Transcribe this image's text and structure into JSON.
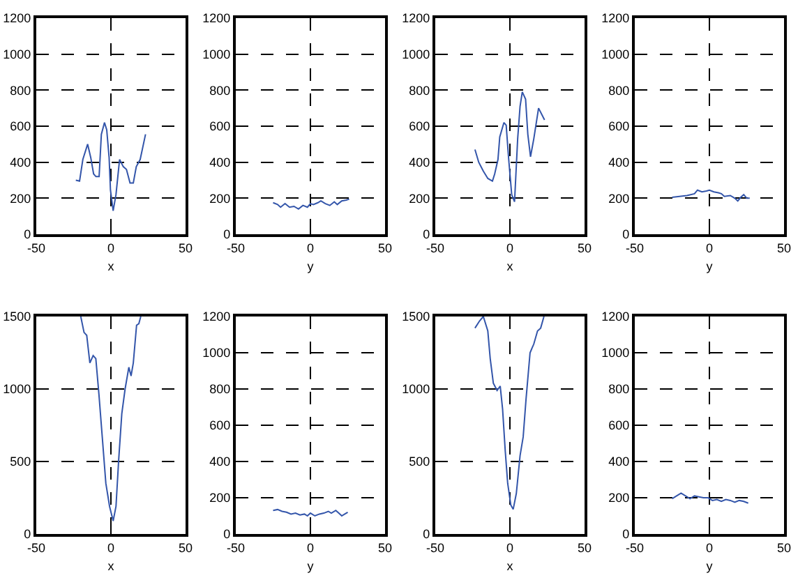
{
  "chart_data": [
    {
      "type": "line",
      "xlabel": "x",
      "xlim": [
        -50,
        50
      ],
      "xticks": [
        -50,
        0,
        50
      ],
      "ylim": [
        0,
        1200
      ],
      "yticks": [
        0,
        200,
        400,
        600,
        800,
        1000,
        1200
      ],
      "grid": true,
      "line_style": "solid",
      "series": [
        {
          "color": "#3355aa",
          "x": [
            -23.5,
            -21,
            -18.8,
            -15.6,
            -13.5,
            -11.6,
            -10,
            -7.9,
            -6.4,
            -4.3,
            -2.8,
            -1.2,
            -0.3,
            1.5,
            3.4,
            5.8,
            8.3,
            10.4,
            12.8,
            15,
            17,
            19.6,
            23.2
          ],
          "values": [
            300,
            295,
            415,
            500,
            425,
            335,
            320,
            320,
            555,
            620,
            580,
            425,
            245,
            130,
            220,
            415,
            375,
            360,
            285,
            285,
            375,
            415,
            555
          ]
        }
      ]
    },
    {
      "type": "line",
      "xlabel": "y",
      "xlim": [
        -50,
        50
      ],
      "xticks": [
        -50,
        0,
        50
      ],
      "ylim": [
        0,
        1200
      ],
      "yticks": [
        0,
        200,
        400,
        600,
        800,
        1000,
        1200
      ],
      "grid": true,
      "line_style": "solid",
      "series": [
        {
          "color": "#3355aa",
          "x": [
            -25,
            -22,
            -20,
            -17,
            -14,
            -11,
            -8,
            -5,
            -2,
            0,
            2,
            5,
            7,
            10,
            13,
            16,
            18,
            21,
            24,
            26
          ],
          "values": [
            175,
            165,
            150,
            170,
            150,
            155,
            140,
            160,
            150,
            170,
            165,
            175,
            185,
            170,
            160,
            180,
            165,
            185,
            190,
            195
          ]
        }
      ]
    },
    {
      "type": "line",
      "xlabel": "x",
      "xlim": [
        -50,
        50
      ],
      "xticks": [
        -50,
        0,
        50
      ],
      "ylim": [
        0,
        1200
      ],
      "yticks": [
        0,
        200,
        400,
        600,
        800,
        1000,
        1200
      ],
      "grid": true,
      "line_style": "solid",
      "series": [
        {
          "color": "#3355aa",
          "x": [
            -23.4,
            -20.9,
            -17.8,
            -14.8,
            -11.7,
            -10.2,
            -8,
            -6.8,
            -4,
            -2.5,
            -0.9,
            1.2,
            3.1,
            5.2,
            6.8,
            8.3,
            10.5,
            12,
            13.8,
            16,
            19.2,
            23.2
          ],
          "values": [
            470,
            400,
            350,
            310,
            295,
            335,
            415,
            540,
            620,
            605,
            425,
            220,
            180,
            530,
            710,
            790,
            750,
            555,
            430,
            530,
            700,
            635
          ]
        }
      ]
    },
    {
      "type": "line",
      "xlabel": "y",
      "xlim": [
        -50,
        50
      ],
      "xticks": [
        -50,
        0,
        50
      ],
      "ylim": [
        0,
        1200
      ],
      "yticks": [
        0,
        200,
        400,
        600,
        800,
        1000,
        1200
      ],
      "grid": true,
      "line_style": "solid",
      "series": [
        {
          "color": "#3355aa",
          "x": [
            -25,
            -20,
            -15,
            -10,
            -8,
            -5,
            -2,
            0,
            3,
            6,
            8,
            10,
            14,
            17,
            19,
            21,
            23,
            25,
            27
          ],
          "values": [
            205,
            210,
            215,
            225,
            245,
            235,
            240,
            245,
            235,
            230,
            225,
            210,
            215,
            200,
            185,
            205,
            220,
            200,
            200
          ]
        }
      ]
    },
    {
      "type": "line",
      "xlabel": "x",
      "xlim": [
        -50,
        50
      ],
      "xticks": [
        -50,
        0,
        50
      ],
      "ylim": [
        0,
        1500
      ],
      "yticks": [
        0,
        500,
        1000,
        1500
      ],
      "grid": true,
      "line_style": "solid",
      "series": [
        {
          "color": "#3355aa",
          "x": [
            -20.2,
            -18,
            -16.2,
            -14.1,
            -11.9,
            -10.1,
            -8,
            -5.8,
            -3.4,
            -0.9,
            1.5,
            3.4,
            5.2,
            7.3,
            9.5,
            12,
            13.5,
            15,
            17.2,
            18.7,
            20
          ],
          "values": [
            1500,
            1390,
            1370,
            1180,
            1230,
            1210,
            960,
            670,
            350,
            190,
            90,
            190,
            510,
            830,
            1000,
            1150,
            1090,
            1180,
            1440,
            1450,
            1500
          ]
        }
      ]
    },
    {
      "type": "line",
      "xlabel": "y",
      "xlim": [
        -50,
        50
      ],
      "xticks": [
        -50,
        0,
        50
      ],
      "ylim": [
        0,
        1200
      ],
      "yticks": [
        0,
        200,
        400,
        600,
        800,
        1000,
        1200
      ],
      "grid": true,
      "line_style": "solid",
      "series": [
        {
          "color": "#3355aa",
          "x": [
            -25,
            -22,
            -19,
            -16,
            -13,
            -10,
            -7,
            -4,
            -2,
            0,
            3,
            6,
            9,
            12,
            14,
            17,
            19,
            21,
            23,
            25
          ],
          "values": [
            130,
            135,
            125,
            120,
            110,
            115,
            105,
            110,
            100,
            115,
            100,
            110,
            115,
            125,
            115,
            130,
            115,
            100,
            110,
            120
          ]
        }
      ]
    },
    {
      "type": "line",
      "xlabel": "x",
      "xlim": [
        -50,
        50
      ],
      "xticks": [
        -50,
        0,
        50
      ],
      "ylim": [
        0,
        1500
      ],
      "yticks": [
        0,
        500,
        1000,
        1500
      ],
      "grid": true,
      "line_style": "solid",
      "series": [
        {
          "color": "#3355aa",
          "x": [
            -23.4,
            -20.3,
            -17.8,
            -14.8,
            -13.2,
            -11.1,
            -8.6,
            -6.5,
            -4.9,
            -3.1,
            -1.5,
            0.6,
            2.2,
            4.3,
            6.8,
            8.9,
            10.8,
            13.5,
            16,
            18.5,
            20.6,
            22.8
          ],
          "values": [
            1420,
            1470,
            1500,
            1400,
            1210,
            1040,
            990,
            1020,
            860,
            570,
            350,
            200,
            170,
            280,
            540,
            670,
            930,
            1250,
            1310,
            1400,
            1420,
            1500
          ]
        }
      ]
    },
    {
      "type": "line",
      "xlabel": "y",
      "xlim": [
        -50,
        50
      ],
      "xticks": [
        -50,
        0,
        50
      ],
      "ylim": [
        0,
        1200
      ],
      "yticks": [
        0,
        200,
        400,
        600,
        800,
        1000,
        1200
      ],
      "grid": true,
      "line_style": "solid",
      "series": [
        {
          "color": "#3355aa",
          "x": [
            -25,
            -22,
            -19,
            -16,
            -13,
            -10,
            -7,
            -4,
            -1,
            2,
            5,
            8,
            11,
            14,
            17,
            20,
            23,
            26
          ],
          "values": [
            195,
            210,
            225,
            210,
            195,
            210,
            205,
            200,
            200,
            185,
            190,
            180,
            190,
            185,
            175,
            185,
            180,
            170
          ]
        }
      ]
    }
  ]
}
